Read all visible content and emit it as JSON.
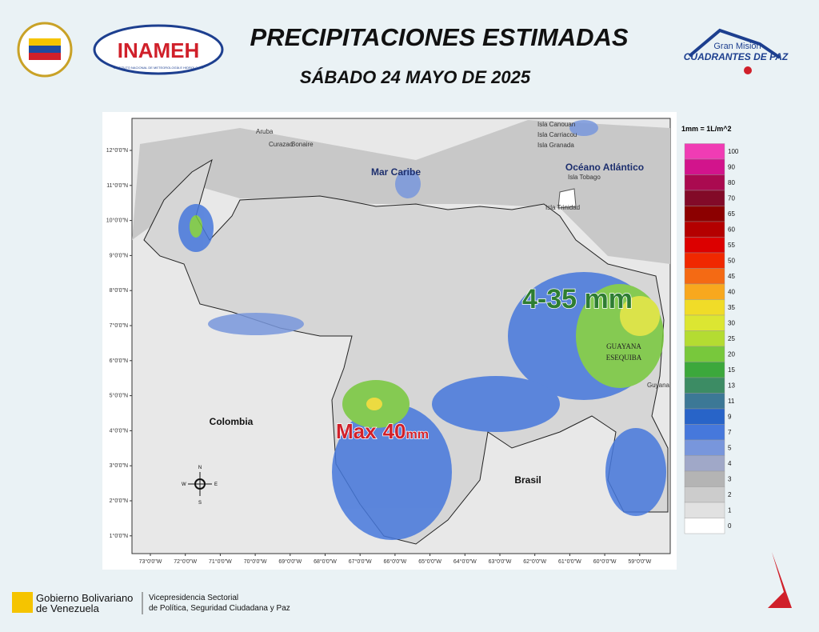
{
  "header": {
    "title": "PRECIPITACIONES ESTIMADAS",
    "subtitle": "SÁBADO 24 MAYO DE 2025",
    "inameh": "INAMEH",
    "inameh_sub": "INSTITUTO NACIONAL DE METEOROLOGÍA E HIDROLOGÍA",
    "mision_top": "Gran Misión",
    "mision": "CUADRANTES DE PAZ"
  },
  "map": {
    "lat_labels": [
      "12°0'0\"N",
      "11°0'0\"N",
      "10°0'0\"N",
      "9°0'0\"N",
      "8°0'0\"N",
      "7°0'0\"N",
      "6°0'0\"N",
      "5°0'0\"N",
      "4°0'0\"N",
      "3°0'0\"N",
      "2°0'0\"N",
      "1°0'0\"N"
    ],
    "lon_labels": [
      "73°0'0\"W",
      "72°0'0\"W",
      "71°0'0\"W",
      "70°0'0\"W",
      "69°0'0\"W",
      "68°0'0\"W",
      "67°0'0\"W",
      "66°0'0\"W",
      "65°0'0\"W",
      "64°0'0\"W",
      "63°0'0\"W",
      "62°0'0\"W",
      "61°0'0\"W",
      "60°0'0\"W",
      "59°0'0\"W"
    ],
    "seas": [
      "Mar Caribe",
      "Océano Atlántico"
    ],
    "countries": [
      "Colombia",
      "Brasil"
    ],
    "guyana": "Guyana",
    "esequibo": [
      "GUAYANA",
      "ESEQUIBA"
    ],
    "islands": [
      "Aruba",
      "Curazao",
      "Bonaire",
      "Isla Canouan",
      "Isla Carriacou",
      "Isla Granada",
      "Isla Tobago",
      "Isla Trinidad"
    ],
    "annotation_range": "4-35 mm",
    "annotation_max": "Max",
    "annotation_max_value": "40",
    "annotation_max_unit": "mm",
    "compass": [
      "N",
      "E",
      "S",
      "W"
    ]
  },
  "legend": {
    "title": "1mm = 1L/m^2",
    "levels": [
      100,
      90,
      80,
      70,
      65,
      60,
      55,
      50,
      45,
      40,
      35,
      30,
      25,
      20,
      15,
      13,
      11,
      9,
      7,
      5,
      4,
      3,
      2,
      1,
      0
    ],
    "colors": [
      "#f03cb4",
      "#d2148c",
      "#aa0a50",
      "#820a28",
      "#8c0000",
      "#b40000",
      "#dc0000",
      "#f02800",
      "#f46a14",
      "#f8a81e",
      "#f0dc28",
      "#dce632",
      "#b4dc32",
      "#78c83c",
      "#3ca83c",
      "#3c8c64",
      "#3c7896",
      "#2864c8",
      "#4678dc",
      "#7896dc",
      "#a0a8c8",
      "#b4b4b4",
      "#cccccc",
      "#e1e1e1",
      "#ffffff"
    ]
  },
  "footer": {
    "gobierno": "Gobierno Bolivariano",
    "gobierno2": "de Venezuela",
    "vice": "Vicepresidencia Sectorial",
    "vice2": "de Política, Seguridad Ciudadana y Paz"
  }
}
